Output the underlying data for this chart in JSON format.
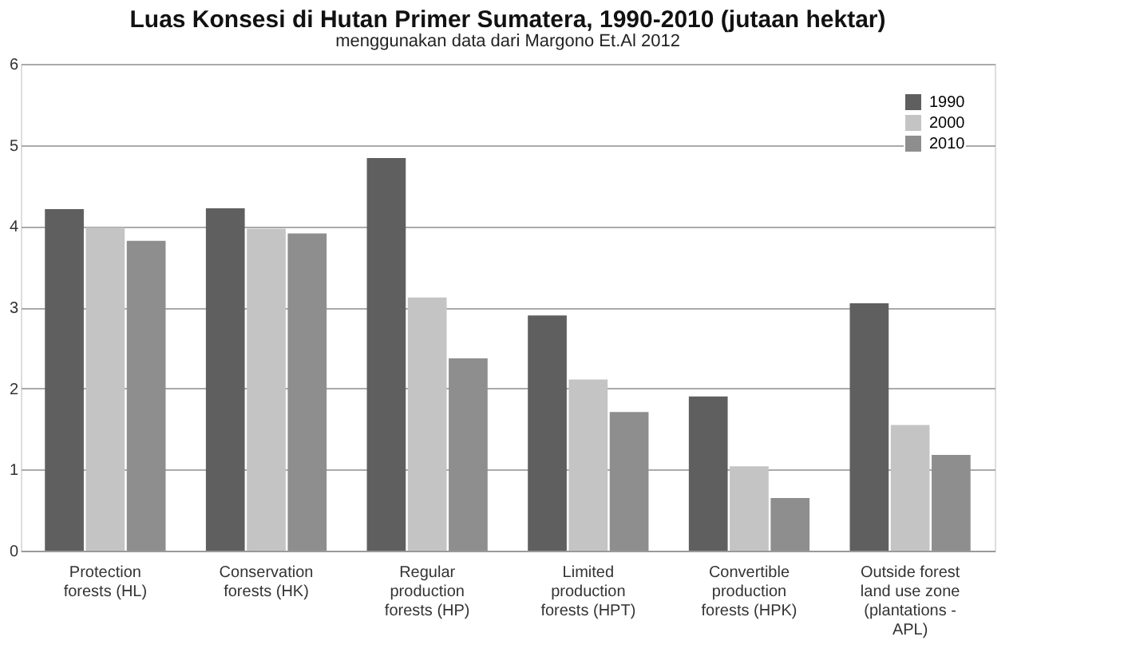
{
  "chart_data": {
    "type": "bar",
    "title": "Luas Konsesi di Hutan Primer Sumatera, 1990-2010 (jutaan hektar)",
    "subtitle": "menggunakan data dari Margono Et.Al 2012",
    "categories": [
      "Protection\nforests (HL)",
      "Conservation\nforests (HK)",
      "Regular\nproduction\nforests (HP)",
      "Limited\nproduction\nforests (HPT)",
      "Convertible\nproduction\nforests (HPK)",
      "Outside forest\nland use zone\n(plantations -\nAPL)"
    ],
    "series": [
      {
        "name": "1990",
        "color": "#5f5f5f",
        "values": [
          4.21,
          4.22,
          4.84,
          2.9,
          1.9,
          3.05
        ]
      },
      {
        "name": "2000",
        "color": "#c4c4c4",
        "values": [
          3.98,
          3.97,
          3.12,
          2.11,
          1.04,
          1.55
        ]
      },
      {
        "name": "2010",
        "color": "#8e8e8e",
        "values": [
          3.82,
          3.91,
          2.37,
          1.71,
          0.65,
          1.18
        ]
      }
    ],
    "ylim": [
      0,
      6
    ],
    "yticks": [
      0,
      1,
      2,
      3,
      4,
      5,
      6
    ],
    "grid": "y",
    "legend": "top right"
  }
}
